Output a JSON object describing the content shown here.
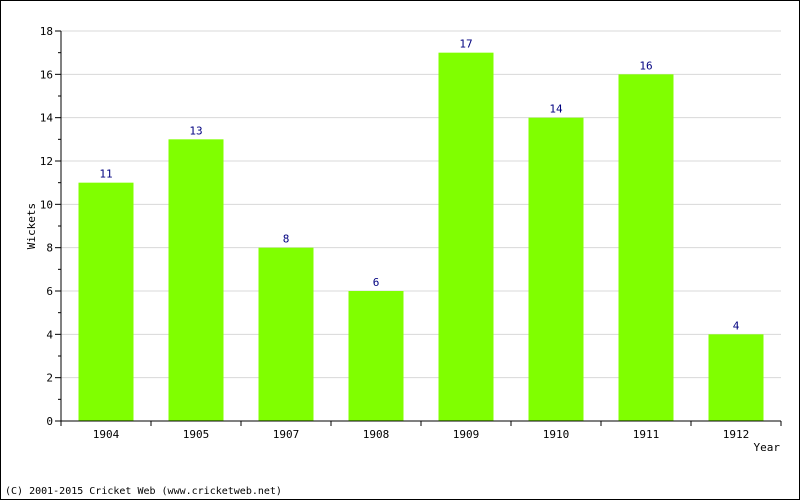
{
  "chart_data": {
    "type": "bar",
    "categories": [
      "1904",
      "1905",
      "1907",
      "1908",
      "1909",
      "1910",
      "1911",
      "1912"
    ],
    "values": [
      11,
      13,
      8,
      6,
      17,
      14,
      16,
      4
    ],
    "xlabel": "Year",
    "ylabel": "Wickets",
    "ylim": [
      0,
      18
    ],
    "yticks": [
      0,
      2,
      4,
      6,
      8,
      10,
      12,
      14,
      16,
      18
    ],
    "grid": true,
    "data_labels": true,
    "bar_color": "#80ff00",
    "label_color": "#000080",
    "grid_color": "#d8d8d8"
  },
  "footer": {
    "copyright": "(C) 2001-2015 Cricket Web (www.cricketweb.net)"
  }
}
